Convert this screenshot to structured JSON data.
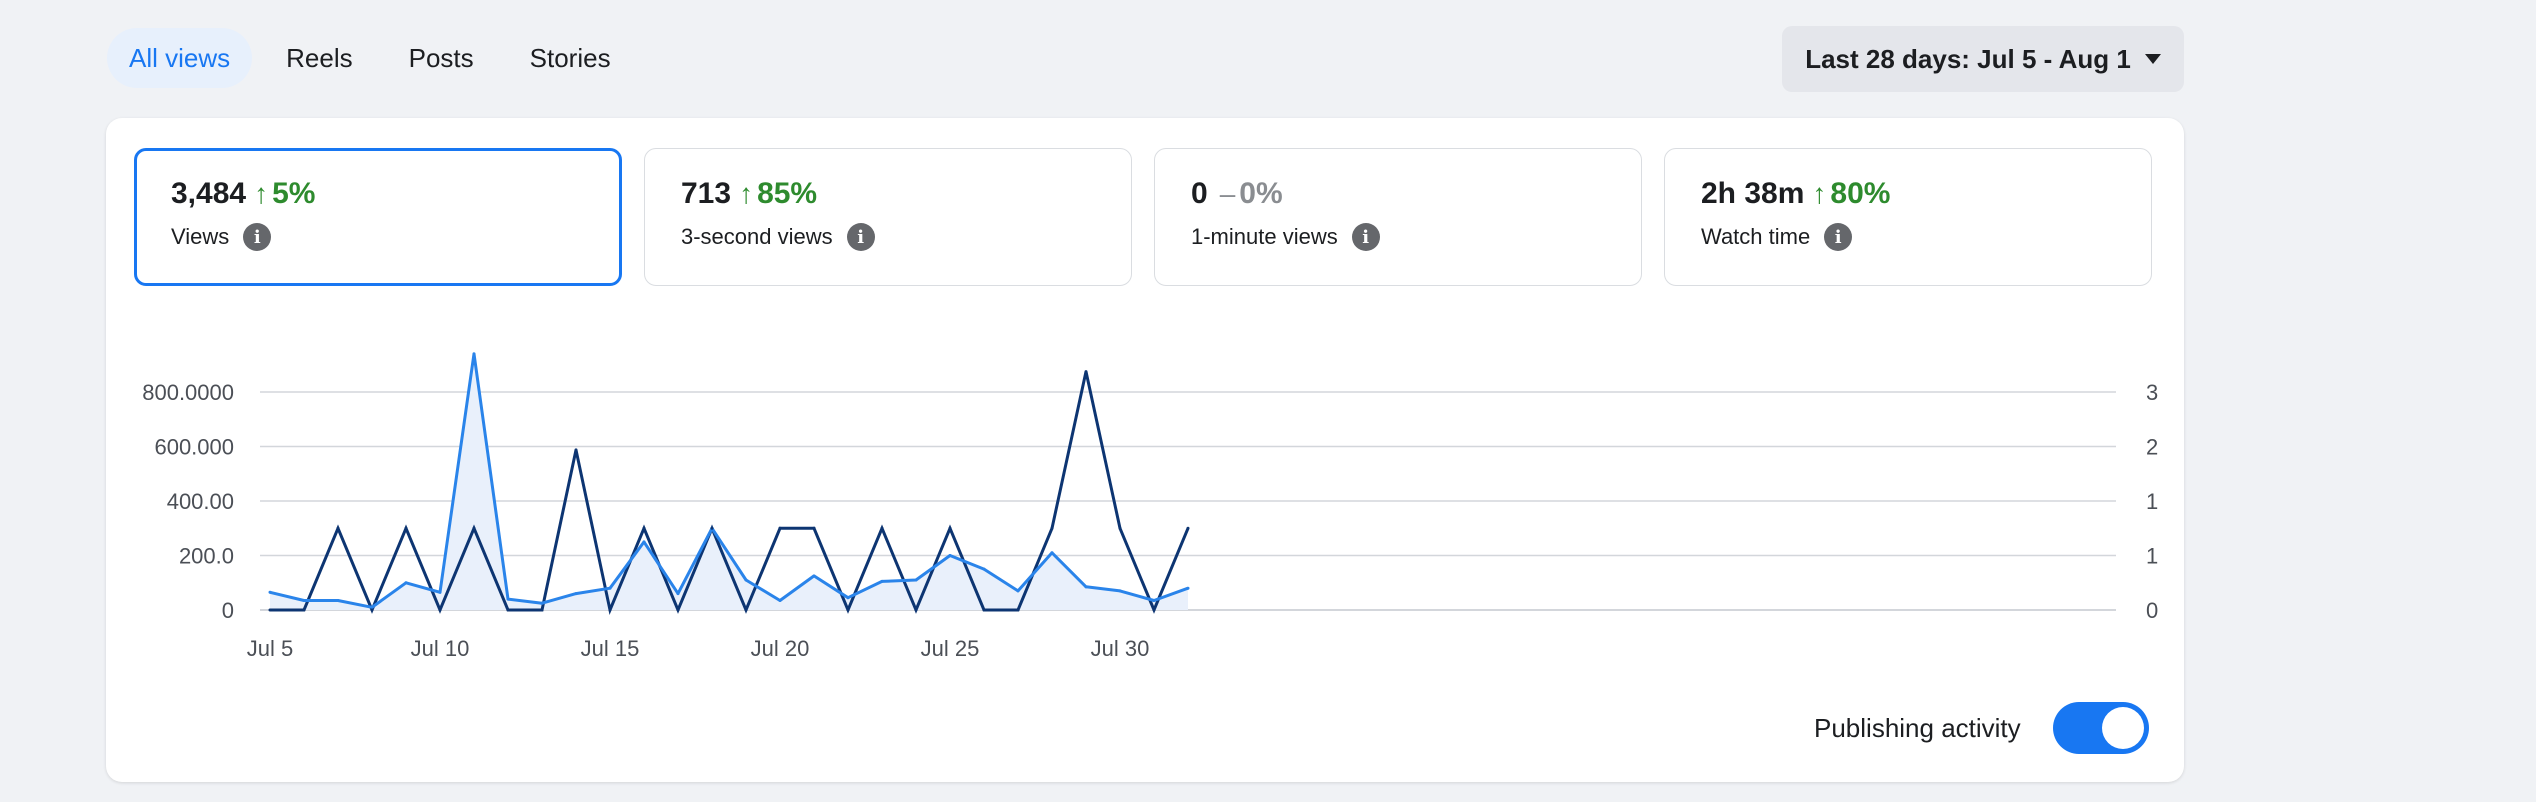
{
  "tabs": [
    "All views",
    "Reels",
    "Posts",
    "Stories"
  ],
  "date_range": {
    "label": "Last 28 days: Jul 5 - Aug 1"
  },
  "metrics": [
    {
      "value": "3,484",
      "arrow": "↑",
      "change": "5%",
      "label": "Views",
      "info_icon": "info-icon"
    },
    {
      "value": "713",
      "arrow": "↑",
      "change": "85%",
      "label": "3-second views",
      "info_icon": "info-icon"
    },
    {
      "value": "0",
      "dash": "–",
      "change": "0%",
      "label": "1-minute views",
      "info_icon": "info-icon"
    },
    {
      "value": "2h 38m",
      "arrow": "↑",
      "change": "80%",
      "label": "Watch time",
      "info_icon": "info-icon"
    }
  ],
  "colors": {
    "accent": "#1877f2",
    "views_line": "#2a84ea",
    "views_fill": "#e9f0fb",
    "publishing_line": "#0d3572",
    "positive": "#2e8b2e",
    "neutral": "#8a8d91",
    "grid": "#d3d6db"
  },
  "chart_data": {
    "type": "line",
    "title": "",
    "x": [
      "Jul 5",
      "Jul 6",
      "Jul 7",
      "Jul 8",
      "Jul 9",
      "Jul 10",
      "Jul 11",
      "Jul 12",
      "Jul 13",
      "Jul 14",
      "Jul 15",
      "Jul 16",
      "Jul 17",
      "Jul 18",
      "Jul 19",
      "Jul 20",
      "Jul 21",
      "Jul 22",
      "Jul 23",
      "Jul 24",
      "Jul 25",
      "Jul 26",
      "Jul 27",
      "Jul 28",
      "Jul 29",
      "Jul 30",
      "Jul 31",
      "Aug 1"
    ],
    "x_tick_labels": [
      "Jul 5",
      "Jul 10",
      "Jul 15",
      "Jul 20",
      "Jul 25",
      "Jul 30"
    ],
    "y_left_tick_labels": [
      "0",
      "200.0",
      "400.00",
      "600.000",
      "800.0000"
    ],
    "y_right_tick_labels": [
      "0",
      "1",
      "1",
      "2",
      "3"
    ],
    "y_left_range": [
      0,
      800
    ],
    "y_right_range": [
      0,
      3.2
    ],
    "grid": true,
    "series": [
      {
        "values": [
          65,
          35,
          35,
          10,
          100,
          65,
          940,
          40,
          25,
          60,
          80,
          250,
          60,
          300,
          110,
          35,
          125,
          45,
          105,
          110,
          200,
          150,
          70,
          210,
          85,
          70,
          35,
          80
        ]
      },
      {
        "values": [
          0,
          0,
          1.2,
          0,
          1.2,
          0,
          1.2,
          0,
          0,
          2.35,
          0,
          1.2,
          0,
          1.2,
          0,
          1.2,
          1.2,
          0,
          1.2,
          0,
          1.2,
          0,
          0,
          1.2,
          3.5,
          1.2,
          0,
          1.2
        ]
      }
    ]
  },
  "publishing_activity": {
    "label": "Publishing activity",
    "enabled": true
  }
}
